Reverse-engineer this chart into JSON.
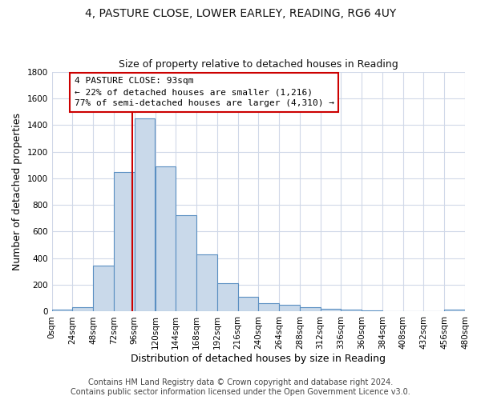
{
  "title_line1": "4, PASTURE CLOSE, LOWER EARLEY, READING, RG6 4UY",
  "title_line2": "Size of property relative to detached houses in Reading",
  "xlabel": "Distribution of detached houses by size in Reading",
  "ylabel": "Number of detached properties",
  "bin_edges": [
    0,
    24,
    48,
    72,
    96,
    120,
    144,
    168,
    192,
    216,
    240,
    264,
    288,
    312,
    336,
    360,
    384,
    408,
    432,
    456,
    480
  ],
  "bar_heights": [
    15,
    30,
    345,
    1050,
    1450,
    1090,
    725,
    430,
    215,
    110,
    60,
    50,
    30,
    20,
    15,
    10,
    5,
    5,
    5,
    15
  ],
  "bar_color": "#c9d9ea",
  "bar_edge_color": "#5a8fc2",
  "property_size": 93,
  "vline_color": "#cc0000",
  "annotation_line1": "4 PASTURE CLOSE: 93sqm",
  "annotation_line2": "← 22% of detached houses are smaller (1,216)",
  "annotation_line3": "77% of semi-detached houses are larger (4,310) →",
  "annotation_box_color": "#ffffff",
  "annotation_box_edge_color": "#cc0000",
  "ylim": [
    0,
    1800
  ],
  "yticks": [
    0,
    200,
    400,
    600,
    800,
    1000,
    1200,
    1400,
    1600,
    1800
  ],
  "background_color": "#ffffff",
  "grid_color": "#d0d8e8",
  "footnote_line1": "Contains HM Land Registry data © Crown copyright and database right 2024.",
  "footnote_line2": "Contains public sector information licensed under the Open Government Licence v3.0.",
  "title_fontsize": 10,
  "subtitle_fontsize": 9,
  "axis_label_fontsize": 9,
  "tick_fontsize": 7.5,
  "annotation_fontsize": 8,
  "footnote_fontsize": 7
}
